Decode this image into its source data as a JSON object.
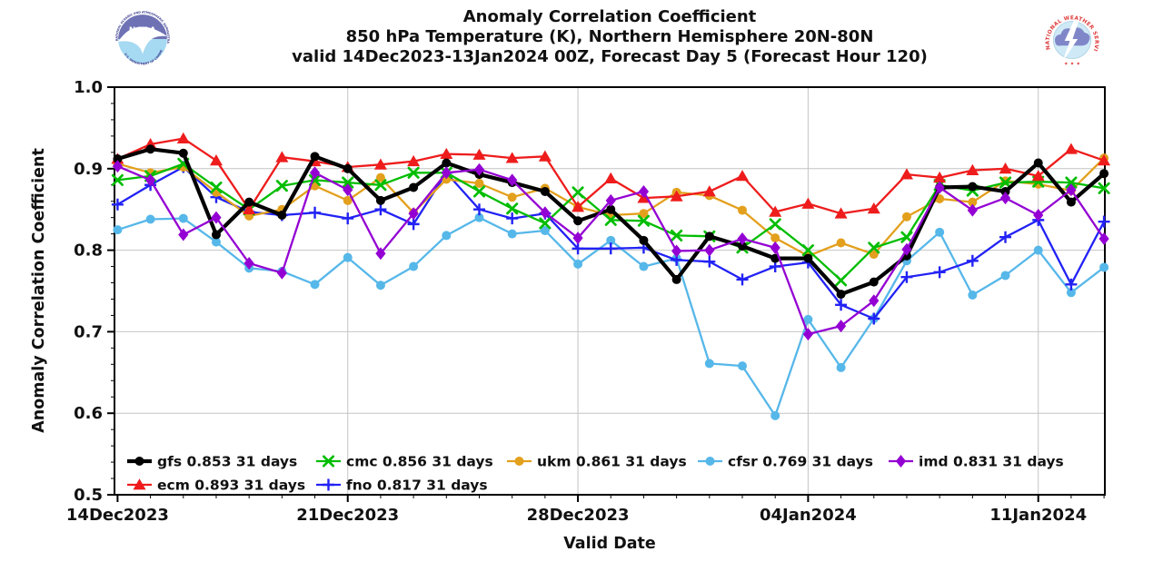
{
  "header": {
    "title_line1": "Anomaly Correlation Coefficient",
    "title_line2": "850 hPa Temperature (K), Northern Hemisphere 20N-80N",
    "title_line3": "valid 14Dec2023-13Jan2024 00Z, Forecast Day 5 (Forecast Hour 120)"
  },
  "logos": {
    "noaa": {
      "acronym": "NOAA",
      "ring_text_top": "NATIONAL OCEANIC AND ATMOSPHERIC ADMINISTRATION",
      "ring_text_bottom": "U.S. DEPARTMENT OF COMMERCE",
      "top_color": "#6e72b4",
      "bottom_color": "#a6d9f2"
    },
    "nws": {
      "ring_text": "NATIONAL WEATHER SERVICE",
      "stars": "✦ ✦ ✦",
      "text_color": "#e03a3a",
      "cloud_color": "#8087c8",
      "sky_color": "#cfeaf6"
    }
  },
  "chart_data": {
    "type": "line",
    "title": "Anomaly Correlation Coefficient — 850 hPa Temperature (K), Northern Hemisphere 20N-80N, valid 14Dec2023-13Jan2024 00Z, Forecast Day 5 (Forecast Hour 120)",
    "xlabel": "Valid Date",
    "ylabel": "Anomaly Correlation Coefficient",
    "ylim": [
      0.5,
      1.0
    ],
    "grid": true,
    "legend_position": "bottom-left-inside",
    "y_tick_labels": [
      "0.5",
      "0.6",
      "0.7",
      "0.8",
      "0.9",
      "1.0"
    ],
    "y_ticks": [
      0.5,
      0.6,
      0.7,
      0.8,
      0.9,
      1.0
    ],
    "x_major_tick_labels": [
      "14Dec2023",
      "21Dec2023",
      "28Dec2023",
      "04Jan2024",
      "11Jan2024"
    ],
    "x_major_tick_days": [
      0,
      7,
      14,
      21,
      28
    ],
    "x": [
      "14Dec",
      "15Dec",
      "16Dec",
      "17Dec",
      "18Dec",
      "19Dec",
      "20Dec",
      "21Dec",
      "22Dec",
      "23Dec",
      "24Dec",
      "25Dec",
      "26Dec",
      "27Dec",
      "28Dec",
      "29Dec",
      "30Dec",
      "31Dec",
      "01Jan",
      "02Jan",
      "03Jan",
      "04Jan",
      "05Jan",
      "06Jan",
      "07Jan",
      "08Jan",
      "09Jan",
      "10Jan",
      "11Jan",
      "12Jan",
      "13Jan"
    ],
    "series": [
      {
        "name": "gfs",
        "legend_label": "gfs 0.853 31 days",
        "mean": 0.853,
        "days": 31,
        "color": "#000000",
        "marker": "circle",
        "linewidth": 4.2,
        "values": [
          0.912,
          0.924,
          0.919,
          0.819,
          0.859,
          0.843,
          0.915,
          0.9,
          0.861,
          0.877,
          0.907,
          0.893,
          0.883,
          0.872,
          0.836,
          0.85,
          0.812,
          0.764,
          0.817,
          0.805,
          0.79,
          0.79,
          0.746,
          0.761,
          0.793,
          0.877,
          0.878,
          0.872,
          0.907,
          0.859,
          0.894
        ]
      },
      {
        "name": "ecm",
        "legend_label": "ecm 0.893 31 days",
        "mean": 0.893,
        "days": 31,
        "color": "#ee1c1c",
        "marker": "triangle",
        "linewidth": 2.3,
        "values": [
          0.912,
          0.93,
          0.937,
          0.91,
          0.85,
          0.914,
          0.909,
          0.902,
          0.905,
          0.909,
          0.918,
          0.917,
          0.913,
          0.915,
          0.853,
          0.888,
          0.864,
          0.866,
          0.872,
          0.891,
          0.847,
          0.857,
          0.845,
          0.851,
          0.893,
          0.889,
          0.898,
          0.9,
          0.891,
          0.924,
          0.91
        ]
      },
      {
        "name": "cmc",
        "legend_label": "cmc 0.856 31 days",
        "mean": 0.856,
        "days": 31,
        "color": "#00bd00",
        "marker": "x",
        "linewidth": 2.3,
        "values": [
          0.886,
          0.891,
          0.906,
          0.877,
          0.85,
          0.879,
          0.886,
          0.883,
          0.88,
          0.895,
          0.895,
          0.872,
          0.851,
          0.833,
          0.871,
          0.837,
          0.836,
          0.818,
          0.817,
          0.803,
          0.832,
          0.8,
          0.763,
          0.803,
          0.816,
          0.88,
          0.873,
          0.883,
          0.884,
          0.883,
          0.876
        ]
      },
      {
        "name": "fno",
        "legend_label": "fno 0.817 31 days",
        "mean": 0.817,
        "days": 31,
        "color": "#2222f5",
        "marker": "plus",
        "linewidth": 2.3,
        "values": [
          0.856,
          0.88,
          0.902,
          0.865,
          0.847,
          0.843,
          0.846,
          0.839,
          0.85,
          0.832,
          0.895,
          0.85,
          0.839,
          0.845,
          0.802,
          0.802,
          0.803,
          0.788,
          0.786,
          0.764,
          0.78,
          0.785,
          0.733,
          0.716,
          0.767,
          0.773,
          0.787,
          0.816,
          0.837,
          0.758,
          0.835
        ]
      },
      {
        "name": "ukm",
        "legend_label": "ukm 0.861 31 days",
        "mean": 0.861,
        "days": 31,
        "color": "#e3a01d",
        "marker": "circle",
        "linewidth": 2.3,
        "values": [
          0.906,
          0.895,
          0.902,
          0.871,
          0.842,
          0.85,
          0.879,
          0.861,
          0.889,
          0.846,
          0.887,
          0.882,
          0.865,
          0.876,
          0.853,
          0.843,
          0.845,
          0.871,
          0.867,
          0.849,
          0.815,
          0.793,
          0.809,
          0.795,
          0.841,
          0.863,
          0.859,
          0.885,
          0.881,
          0.873,
          0.913
        ]
      },
      {
        "name": "cfsr",
        "legend_label": "cfsr 0.769 31 days",
        "mean": 0.769,
        "days": 31,
        "color": "#56b7e9",
        "marker": "circle",
        "linewidth": 2.3,
        "values": [
          0.825,
          0.838,
          0.839,
          0.81,
          0.778,
          0.774,
          0.758,
          0.791,
          0.757,
          0.78,
          0.818,
          0.84,
          0.82,
          0.824,
          0.783,
          0.812,
          0.78,
          0.79,
          0.661,
          0.658,
          0.597,
          0.715,
          0.656,
          0.716,
          0.787,
          0.822,
          0.745,
          0.769,
          0.8,
          0.748,
          0.779
        ]
      },
      {
        "name": "imd",
        "legend_label": "imd 0.831 31 days",
        "mean": 0.831,
        "days": 31,
        "color": "#9400d3",
        "marker": "diamond",
        "linewidth": 2.3,
        "values": [
          0.903,
          0.886,
          0.819,
          0.84,
          0.784,
          0.772,
          0.895,
          0.874,
          0.796,
          0.845,
          0.895,
          0.899,
          0.886,
          0.846,
          0.815,
          0.861,
          0.872,
          0.799,
          0.8,
          0.814,
          0.803,
          0.697,
          0.707,
          0.738,
          0.801,
          0.877,
          0.849,
          0.864,
          0.843,
          0.874,
          0.814
        ]
      }
    ],
    "grid_color": "#c4c4c4"
  }
}
